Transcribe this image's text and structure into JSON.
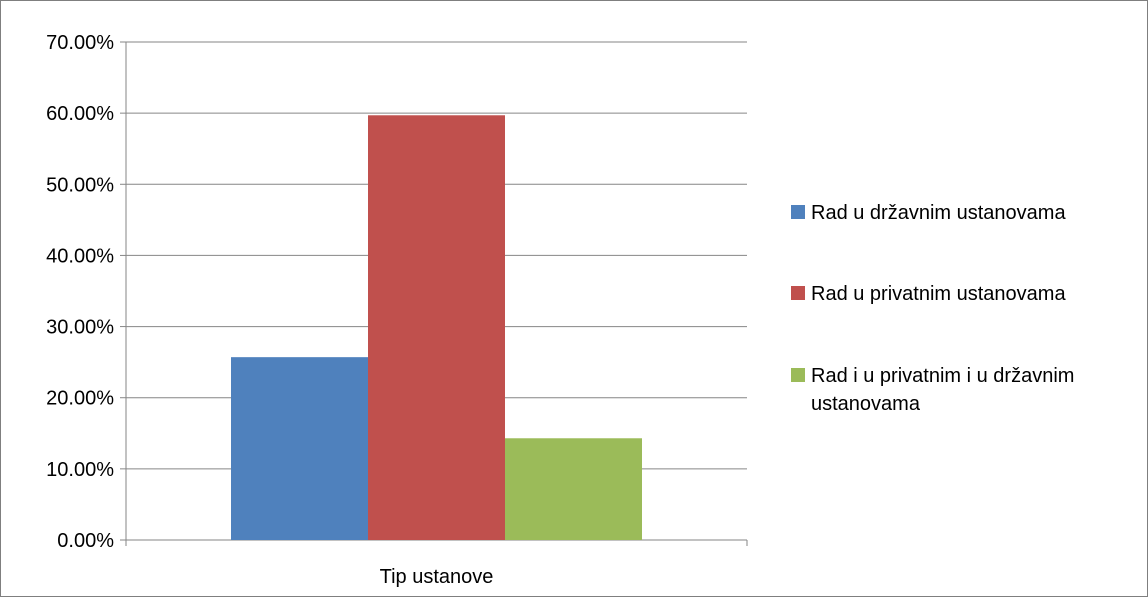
{
  "chart_data": {
    "type": "bar",
    "title": "",
    "xlabel": "",
    "ylabel": "",
    "categories": [
      "Tip ustanove"
    ],
    "series": [
      {
        "name": "Rad u državnim ustanovama",
        "values": [
          25.7
        ],
        "color": "#4f81bd"
      },
      {
        "name": "Rad u privatnim ustanovama",
        "values": [
          59.7
        ],
        "color": "#c0504d"
      },
      {
        "name": "Rad i u privatnim i u državnim ustanovama",
        "values": [
          14.3
        ],
        "color": "#9bbb59"
      }
    ],
    "ylim": [
      0,
      70
    ],
    "yticks": [
      "0.00%",
      "10.00%",
      "20.00%",
      "30.00%",
      "40.00%",
      "50.00%",
      "60.00%",
      "70.00%"
    ],
    "ytick_values": [
      0,
      10,
      20,
      30,
      40,
      50,
      60,
      70
    ],
    "grid": true,
    "legend_position": "right",
    "gridline_color": "#868686",
    "axis_color": "#868686"
  }
}
